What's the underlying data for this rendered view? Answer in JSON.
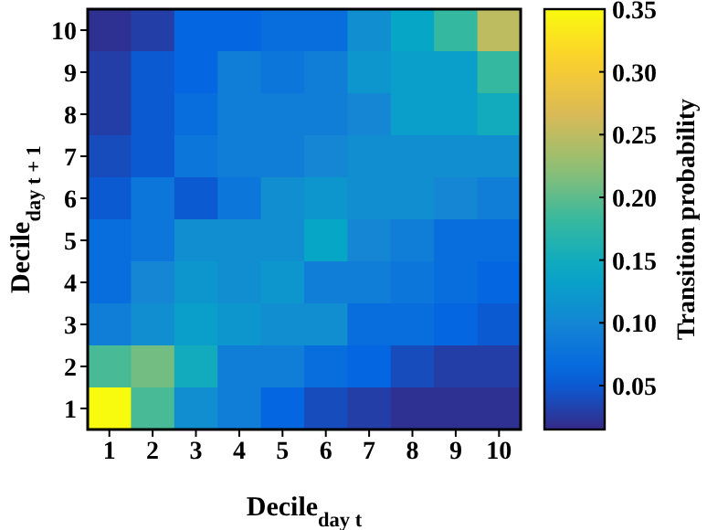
{
  "chart_data": {
    "type": "heatmap",
    "xlabel": "Decile$_{day t}$",
    "ylabel": "Decile$_{day t + 1}$",
    "clabel": "Transition probability",
    "categories": [
      "1",
      "2",
      "3",
      "4",
      "5",
      "6",
      "7",
      "8",
      "9",
      "10"
    ],
    "y_categories": [
      "10",
      "9",
      "8",
      "7",
      "6",
      "5",
      "4",
      "3",
      "2",
      "1"
    ],
    "cells": [
      [
        0.02,
        0.03,
        0.06,
        0.06,
        0.07,
        0.07,
        0.11,
        0.14,
        0.18,
        0.25
      ],
      [
        0.03,
        0.05,
        0.06,
        0.09,
        0.08,
        0.09,
        0.12,
        0.13,
        0.13,
        0.18
      ],
      [
        0.03,
        0.05,
        0.07,
        0.09,
        0.09,
        0.09,
        0.1,
        0.13,
        0.13,
        0.15
      ],
      [
        0.04,
        0.05,
        0.08,
        0.09,
        0.09,
        0.1,
        0.11,
        0.11,
        0.11,
        0.11
      ],
      [
        0.05,
        0.08,
        0.05,
        0.08,
        0.11,
        0.12,
        0.11,
        0.11,
        0.1,
        0.09
      ],
      [
        0.07,
        0.08,
        0.11,
        0.11,
        0.11,
        0.14,
        0.1,
        0.09,
        0.07,
        0.07
      ],
      [
        0.07,
        0.1,
        0.12,
        0.11,
        0.12,
        0.09,
        0.09,
        0.08,
        0.07,
        0.06
      ],
      [
        0.09,
        0.11,
        0.13,
        0.12,
        0.11,
        0.11,
        0.07,
        0.07,
        0.06,
        0.05
      ],
      [
        0.19,
        0.21,
        0.15,
        0.09,
        0.09,
        0.07,
        0.06,
        0.04,
        0.03,
        0.03
      ],
      [
        0.35,
        0.19,
        0.11,
        0.09,
        0.06,
        0.04,
        0.03,
        0.02,
        0.02,
        0.02
      ]
    ],
    "clim": [
      0.015,
      0.35
    ],
    "cticks": [
      0.05,
      {
        "value": 0.1,
        "label": "0.10"
      },
      0.15,
      {
        "value": 0.2,
        "label": "0.20"
      },
      0.25,
      {
        "value": 0.3,
        "label": "0.30"
      },
      0.35
    ]
  }
}
